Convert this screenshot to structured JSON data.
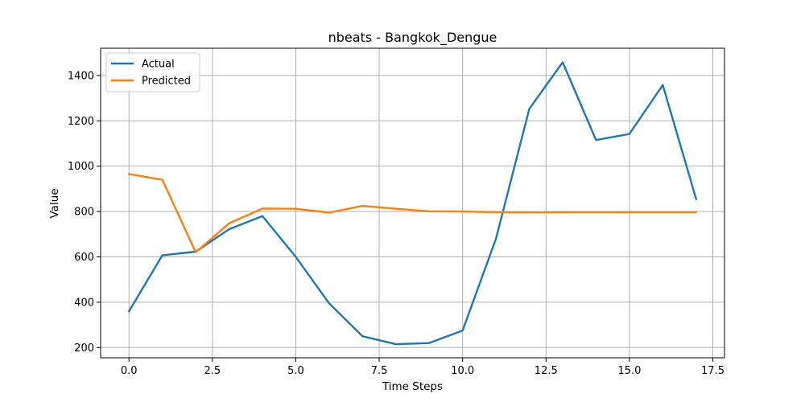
{
  "chart_data": {
    "type": "line",
    "title": "nbeats - Bangkok_Dengue",
    "xlabel": "Time Steps",
    "ylabel": "Value",
    "xlim": [
      -0.85,
      17.85
    ],
    "ylim": [
      155,
      1520
    ],
    "xticks": [
      0,
      2.5,
      5,
      7.5,
      10,
      12.5,
      15,
      17.5
    ],
    "xtick_labels": [
      "0.0",
      "2.5",
      "5.0",
      "7.5",
      "10.0",
      "12.5",
      "15.0",
      "17.5"
    ],
    "yticks": [
      200,
      400,
      600,
      800,
      1000,
      1200,
      1400
    ],
    "ytick_labels": [
      "200",
      "400",
      "600",
      "800",
      "1000",
      "1200",
      "1400"
    ],
    "grid": true,
    "legend_position": "top-left",
    "x": [
      0,
      1,
      2,
      3,
      4,
      5,
      6,
      7,
      8,
      9,
      10,
      11,
      12,
      13,
      14,
      15,
      16,
      17
    ],
    "series": [
      {
        "name": "Actual",
        "color": "#1f77b4",
        "values": [
          360,
          607,
          623,
          722,
          780,
          600,
          395,
          250,
          215,
          220,
          275,
          680,
          1253,
          1458,
          1115,
          1142,
          1358,
          855
        ]
      },
      {
        "name": "Predicted",
        "color": "#ff7f0e",
        "values": [
          965,
          940,
          620,
          748,
          813,
          812,
          795,
          825,
          812,
          801,
          800,
          797,
          796,
          797,
          797,
          797,
          797,
          797
        ]
      }
    ]
  }
}
